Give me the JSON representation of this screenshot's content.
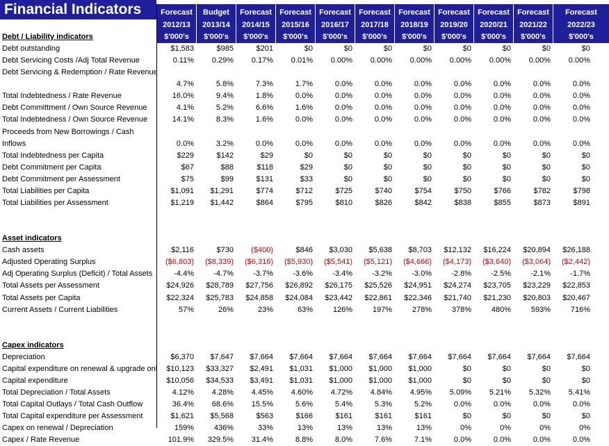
{
  "title": "Financial Indicators",
  "columns": [
    {
      "type": "Forecast",
      "year": "2012/13",
      "unit": "$'000's"
    },
    {
      "type": "Budget",
      "year": "2013/14",
      "unit": "$'000's"
    },
    {
      "type": "Forecast",
      "year": "2014/15",
      "unit": "$'000's"
    },
    {
      "type": "Forecast",
      "year": "2015/16",
      "unit": "$'000's"
    },
    {
      "type": "Forecast",
      "year": "2016/17",
      "unit": "$'000's"
    },
    {
      "type": "Forecast",
      "year": "2017/18",
      "unit": "$'000's"
    },
    {
      "type": "Forecast",
      "year": "2018/19",
      "unit": "$'000's"
    },
    {
      "type": "Forecast",
      "year": "2019/20",
      "unit": "$'000's"
    },
    {
      "type": "Forecast",
      "year": "2020/21",
      "unit": "$'000's"
    },
    {
      "type": "Forecast",
      "year": "2021/22",
      "unit": "$'000's"
    },
    {
      "type": "Forecast",
      "year": "2022/23",
      "unit": "$'000's"
    }
  ],
  "colors": {
    "header_bg": "#1f1f99",
    "header_text": "#ffffff",
    "negative": "#d00000"
  },
  "rows": [
    {
      "label": "Debt / Liability indicators",
      "heading": true
    },
    {
      "label": "Debt outstanding",
      "values": [
        "$1,583",
        "$985",
        "$201",
        "$0",
        "$0",
        "$0",
        "$0",
        "$0",
        "$0",
        "$0",
        "$0"
      ]
    },
    {
      "label": "Debt Servicing Costs /Adj Total Revenue",
      "values": [
        "0.11%",
        "0.29%",
        "0.17%",
        "0.01%",
        "0.00%",
        "0.00%",
        "0.00%",
        "0.00%",
        "0.00%",
        "0.00%",
        "0.00%"
      ]
    },
    {
      "label": "Debt Servicing & Redemption / Rate Revenue"
    },
    {
      "label": "",
      "values": [
        "4.7%",
        "5.8%",
        "7.3%",
        "1.7%",
        "0.0%",
        "0.0%",
        "0.0%",
        "0.0%",
        "0.0%",
        "0.0%",
        "0.0%"
      ]
    },
    {
      "label": "Total Indebtedness / Rate Revenue",
      "values": [
        "16.0%",
        "9.4%",
        "1.8%",
        "0.0%",
        "0.0%",
        "0.0%",
        "0.0%",
        "0.0%",
        "0.0%",
        "0.0%",
        "0.0%"
      ]
    },
    {
      "label": "Debt Committment / Own Source Revenue",
      "values": [
        "4.1%",
        "5.2%",
        "6.6%",
        "1.6%",
        "0.0%",
        "0.0%",
        "0.0%",
        "0.0%",
        "0.0%",
        "0.0%",
        "0.0%"
      ]
    },
    {
      "label": "Total Indebtedness / Own Source Revenue",
      "values": [
        "14.1%",
        "8.3%",
        "1.6%",
        "0.0%",
        "0.0%",
        "0.0%",
        "0.0%",
        "0.0%",
        "0.0%",
        "0.0%",
        "0.0%"
      ]
    },
    {
      "label": "Proceeds from New Borrowings / Cash"
    },
    {
      "label": "Inflows",
      "values": [
        "0.0%",
        "3.2%",
        "0.0%",
        "0.0%",
        "0.0%",
        "0.0%",
        "0.0%",
        "0.0%",
        "0.0%",
        "0.0%",
        "0.0%"
      ]
    },
    {
      "label": "Total Indebtedness per Capita",
      "values": [
        "$229",
        "$142",
        "$29",
        "$0",
        "$0",
        "$0",
        "$0",
        "$0",
        "$0",
        "$0",
        "$0"
      ]
    },
    {
      "label": "Debt Commitment per Capita",
      "values": [
        "$67",
        "$88",
        "$118",
        "$29",
        "$0",
        "$0",
        "$0",
        "$0",
        "$0",
        "$0",
        "$0"
      ]
    },
    {
      "label": "Debt Commitment per Assessment",
      "values": [
        "$75",
        "$99",
        "$131",
        "$33",
        "$0",
        "$0",
        "$0",
        "$0",
        "$0",
        "$0",
        "$0"
      ]
    },
    {
      "label": "Total Liabilities per Capita",
      "values": [
        "$1,091",
        "$1,291",
        "$774",
        "$712",
        "$725",
        "$740",
        "$754",
        "$750",
        "$766",
        "$782",
        "$798"
      ]
    },
    {
      "label": "Total Liabilities per Assessment",
      "values": [
        "$1,219",
        "$1,442",
        "$864",
        "$795",
        "$810",
        "$826",
        "$842",
        "$838",
        "$855",
        "$873",
        "$891"
      ]
    },
    {
      "label": ""
    },
    {
      "label": ""
    },
    {
      "label": "Asset indicators",
      "heading": true
    },
    {
      "label": "Cash assets",
      "values": [
        "$2,116",
        "$730",
        "($400)",
        "$846",
        "$3,030",
        "$5,638",
        "$8,703",
        "$12,132",
        "$16,224",
        "$20,894",
        "$26,188"
      ]
    },
    {
      "label": "Adjusted Operating Surplus",
      "values": [
        "($6,803)",
        "($8,339)",
        "($6,316)",
        "($5,930)",
        "($5,541)",
        "($5,121)",
        "($4,666)",
        "($4,173)",
        "($3,640)",
        "($3,064)",
        "($2,442)"
      ]
    },
    {
      "label": "Adj Operating Surplus (Deficit) / Total Assets",
      "values": [
        "-4.4%",
        "-4.7%",
        "-3.7%",
        "-3.6%",
        "-3.4%",
        "-3.2%",
        "-3.0%",
        "-2.8%",
        "-2.5%",
        "-2.1%",
        "-1.7%"
      ]
    },
    {
      "label": "Total Assets per Assessment",
      "values": [
        "$24,926",
        "$28,789",
        "$27,756",
        "$26,892",
        "$26,175",
        "$25,526",
        "$24,951",
        "$24,274",
        "$23,705",
        "$23,229",
        "$22,853"
      ]
    },
    {
      "label": "Total Assets per Capita",
      "values": [
        "$22,324",
        "$25,783",
        "$24,858",
        "$24,084",
        "$23,442",
        "$22,861",
        "$22,346",
        "$21,740",
        "$21,230",
        "$20,803",
        "$20,467"
      ]
    },
    {
      "label": "Current Assets / Current Liabilities",
      "values": [
        "57%",
        "26%",
        "23%",
        "63%",
        "126%",
        "197%",
        "278%",
        "378%",
        "480%",
        "593%",
        "716%"
      ]
    },
    {
      "label": ""
    },
    {
      "label": ""
    },
    {
      "label": "Capex indicators",
      "heading": true
    },
    {
      "label": "Depreciation",
      "values": [
        "$6,370",
        "$7,647",
        "$7,664",
        "$7,664",
        "$7,664",
        "$7,664",
        "$7,664",
        "$7,664",
        "$7,664",
        "$7,664",
        "$7,664"
      ]
    },
    {
      "label": "Capital expenditure on renewal & upgrade onl",
      "values": [
        "$10,123",
        "$33,327",
        "$2,491",
        "$1,031",
        "$1,000",
        "$1,000",
        "$1,000",
        "$0",
        "$0",
        "$0",
        "$0"
      ]
    },
    {
      "label": "Capital expenditure",
      "values": [
        "$10,056",
        "$34,533",
        "$3,491",
        "$1,031",
        "$1,000",
        "$1,000",
        "$1,000",
        "$0",
        "$0",
        "$0",
        "$0"
      ]
    },
    {
      "label": "Total Depreciation / Total  Assets",
      "values": [
        "4.12%",
        "4.28%",
        "4.45%",
        "4.60%",
        "4.72%",
        "4.84%",
        "4.95%",
        "5.09%",
        "5.21%",
        "5.32%",
        "5.41%"
      ]
    },
    {
      "label": "Total Capital Outlays / Total Cash Outflow",
      "values": [
        "36.4%",
        "68.6%",
        "15.5%",
        "5.6%",
        "5.4%",
        "5.3%",
        "5.2%",
        "0.0%",
        "0.0%",
        "0.0%",
        "0.0%"
      ]
    },
    {
      "label": "Total Capital expenditure per Assessment",
      "values": [
        "$1,621",
        "$5,568",
        "$563",
        "$166",
        "$161",
        "$161",
        "$161",
        "$0",
        "$0",
        "$0",
        "$0"
      ]
    },
    {
      "label": "Capex on renewal / Depreciation",
      "values": [
        "159%",
        "436%",
        "33%",
        "13%",
        "13%",
        "13%",
        "13%",
        "0%",
        "0%",
        "0%",
        "0%"
      ]
    },
    {
      "label": "Capex / Rate Revenue",
      "values": [
        "101.9%",
        "329.5%",
        "31.4%",
        "8.8%",
        "8.0%",
        "7.6%",
        "7.1%",
        "0.0%",
        "0.0%",
        "0.0%",
        "0.0%"
      ]
    }
  ]
}
